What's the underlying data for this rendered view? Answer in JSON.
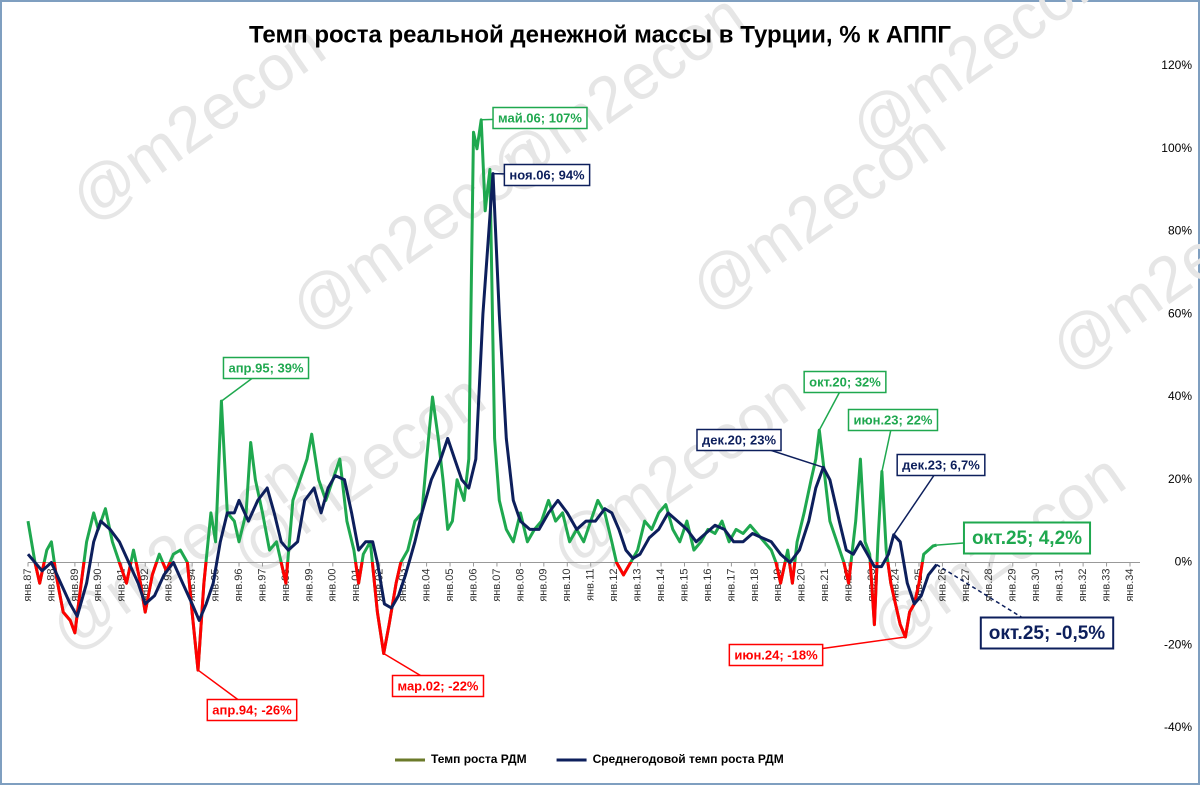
{
  "chart_data": {
    "type": "line",
    "title": "Темп роста реальной денежной массы в Турции, % к АППГ",
    "watermark": "@m2econ",
    "xlim": [
      1987,
      2035
    ],
    "ylim": [
      -40,
      120
    ],
    "xticks": [
      {
        "value": 1987,
        "label": "янв.87"
      },
      {
        "value": 1988,
        "label": "янв.88"
      },
      {
        "value": 1989,
        "label": "янв.89"
      },
      {
        "value": 1990,
        "label": "янв.90"
      },
      {
        "value": 1991,
        "label": "янв.91"
      },
      {
        "value": 1992,
        "label": "янв.92"
      },
      {
        "value": 1993,
        "label": "янв.93"
      },
      {
        "value": 1994,
        "label": "янв.94"
      },
      {
        "value": 1995,
        "label": "янв.95"
      },
      {
        "value": 1996,
        "label": "янв.96"
      },
      {
        "value": 1997,
        "label": "янв.97"
      },
      {
        "value": 1998,
        "label": "янв.98"
      },
      {
        "value": 1999,
        "label": "янв.99"
      },
      {
        "value": 2000,
        "label": "янв.00"
      },
      {
        "value": 2001,
        "label": "янв.01"
      },
      {
        "value": 2002,
        "label": "янв.02"
      },
      {
        "value": 2003,
        "label": "янв.03"
      },
      {
        "value": 2004,
        "label": "янв.04"
      },
      {
        "value": 2005,
        "label": "янв.05"
      },
      {
        "value": 2006,
        "label": "янв.06"
      },
      {
        "value": 2007,
        "label": "янв.07"
      },
      {
        "value": 2008,
        "label": "янв.08"
      },
      {
        "value": 2009,
        "label": "янв.09"
      },
      {
        "value": 2010,
        "label": "янв.10"
      },
      {
        "value": 2011,
        "label": "янв.11"
      },
      {
        "value": 2012,
        "label": "янв.12"
      },
      {
        "value": 2013,
        "label": "янв.13"
      },
      {
        "value": 2014,
        "label": "янв.14"
      },
      {
        "value": 2015,
        "label": "янв.15"
      },
      {
        "value": 2016,
        "label": "янв.16"
      },
      {
        "value": 2017,
        "label": "янв.17"
      },
      {
        "value": 2018,
        "label": "янв.18"
      },
      {
        "value": 2019,
        "label": "янв.19"
      },
      {
        "value": 2020,
        "label": "янв.20"
      },
      {
        "value": 2021,
        "label": "янв.21"
      },
      {
        "value": 2022,
        "label": "янв.22"
      },
      {
        "value": 2023,
        "label": "янв.23"
      },
      {
        "value": 2024,
        "label": "янв.24"
      },
      {
        "value": 2025,
        "label": "янв.25"
      },
      {
        "value": 2026,
        "label": "янв.26"
      },
      {
        "value": 2027,
        "label": "янв.27"
      },
      {
        "value": 2028,
        "label": "янв.28"
      },
      {
        "value": 2029,
        "label": "янв.29"
      },
      {
        "value": 2030,
        "label": "янв.30"
      },
      {
        "value": 2031,
        "label": "янв.31"
      },
      {
        "value": 2032,
        "label": "янв.32"
      },
      {
        "value": 2033,
        "label": "янв.33"
      },
      {
        "value": 2034,
        "label": "янв.34"
      }
    ],
    "yticks": [
      {
        "value": -40,
        "label": "-40%"
      },
      {
        "value": -20,
        "label": "-20%"
      },
      {
        "value": 0,
        "label": "0%"
      },
      {
        "value": 20,
        "label": "20%"
      },
      {
        "value": 40,
        "label": "40%"
      },
      {
        "value": 60,
        "label": "60%"
      },
      {
        "value": 80,
        "label": "80%"
      },
      {
        "value": 100,
        "label": "100%"
      },
      {
        "value": 120,
        "label": "120%"
      }
    ],
    "series": [
      {
        "name": "Темп роста РДМ",
        "color": "#1fa84f",
        "negative_color": "#ff0000",
        "legend_color": "#6b7a2a",
        "x": [
          1987.0,
          1987.3,
          1987.5,
          1987.8,
          1988.0,
          1988.2,
          1988.5,
          1988.8,
          1989.0,
          1989.2,
          1989.5,
          1989.8,
          1990.0,
          1990.3,
          1990.6,
          1990.9,
          1991.2,
          1991.5,
          1991.8,
          1992.0,
          1992.3,
          1992.6,
          1992.9,
          1993.2,
          1993.5,
          1993.8,
          1994.0,
          1994.25,
          1994.5,
          1994.8,
          1995.0,
          1995.25,
          1995.5,
          1995.8,
          1996.0,
          1996.3,
          1996.5,
          1996.7,
          1997.0,
          1997.3,
          1997.6,
          1997.8,
          1998.0,
          1998.3,
          1998.6,
          1998.9,
          1999.1,
          1999.4,
          1999.7,
          2000.0,
          2000.3,
          2000.6,
          2000.9,
          2001.1,
          2001.3,
          2001.6,
          2001.9,
          2002.17,
          2002.4,
          2002.7,
          2002.9,
          2003.2,
          2003.5,
          2003.8,
          2004.0,
          2004.25,
          2004.5,
          2004.7,
          2004.9,
          2005.1,
          2005.3,
          2005.6,
          2005.8,
          2006.0,
          2006.15,
          2006.33,
          2006.5,
          2006.7,
          2006.9,
          2007.1,
          2007.4,
          2007.7,
          2008.0,
          2008.3,
          2008.6,
          2008.9,
          2009.2,
          2009.5,
          2009.8,
          2010.1,
          2010.4,
          2010.7,
          2011.0,
          2011.3,
          2011.6,
          2011.9,
          2012.1,
          2012.4,
          2012.7,
          2013.0,
          2013.3,
          2013.6,
          2013.9,
          2014.2,
          2014.5,
          2014.8,
          2015.1,
          2015.4,
          2015.7,
          2016.0,
          2016.3,
          2016.6,
          2016.9,
          2017.2,
          2017.5,
          2017.8,
          2018.1,
          2018.4,
          2018.7,
          2018.9,
          2019.1,
          2019.4,
          2019.6,
          2019.8,
          2020.1,
          2020.4,
          2020.6,
          2020.75,
          2020.9,
          2021.2,
          2021.5,
          2021.8,
          2022.0,
          2022.3,
          2022.5,
          2022.7,
          2022.9,
          2023.1,
          2023.25,
          2023.42,
          2023.6,
          2023.8,
          2024.0,
          2024.2,
          2024.42,
          2024.6,
          2024.8,
          2025.0,
          2025.2,
          2025.4,
          2025.6,
          2025.75
        ],
        "values": [
          10,
          0,
          -5,
          3,
          5,
          -3,
          -12,
          -14,
          -17,
          -8,
          5,
          12,
          8,
          13,
          5,
          0,
          -5,
          3,
          -5,
          -12,
          -3,
          2,
          -2,
          2,
          3,
          0,
          -12,
          -26,
          -5,
          12,
          5,
          39,
          12,
          10,
          5,
          12,
          29,
          20,
          12,
          3,
          5,
          0,
          -5,
          15,
          20,
          25,
          31,
          20,
          15,
          20,
          25,
          10,
          3,
          -5,
          2,
          5,
          -12,
          -22,
          -15,
          -5,
          0,
          3,
          10,
          12,
          25,
          40,
          30,
          20,
          8,
          10,
          20,
          15,
          25,
          104,
          100,
          107,
          85,
          95,
          30,
          15,
          8,
          5,
          12,
          5,
          8,
          10,
          15,
          10,
          12,
          5,
          8,
          5,
          10,
          15,
          12,
          5,
          0,
          -3,
          0,
          3,
          10,
          8,
          12,
          14,
          8,
          5,
          10,
          3,
          5,
          8,
          7,
          10,
          5,
          8,
          7,
          9,
          7,
          5,
          3,
          0,
          -5,
          3,
          -5,
          5,
          12,
          20,
          25,
          32,
          25,
          10,
          5,
          0,
          -5,
          10,
          25,
          5,
          2,
          -15,
          5,
          22,
          3,
          -5,
          -10,
          -15,
          -18,
          -12,
          -10,
          -5,
          2,
          3,
          4,
          4.2
        ]
      },
      {
        "name": "Среднегодовой темп роста РДМ",
        "color": "#0d1f5c",
        "x": [
          1987.0,
          1987.6,
          1988.0,
          1988.4,
          1988.8,
          1989.1,
          1989.5,
          1989.8,
          1990.1,
          1990.5,
          1990.9,
          1991.3,
          1991.7,
          1992.0,
          1992.4,
          1992.8,
          1993.2,
          1993.6,
          1994.0,
          1994.3,
          1994.6,
          1994.9,
          1995.2,
          1995.5,
          1995.8,
          1996.0,
          1996.4,
          1996.8,
          1997.2,
          1997.5,
          1997.8,
          1998.1,
          1998.5,
          1998.8,
          1999.2,
          1999.5,
          1999.8,
          2000.1,
          2000.5,
          2000.8,
          2001.1,
          2001.4,
          2001.7,
          2001.9,
          2002.2,
          2002.5,
          2002.8,
          2003.1,
          2003.5,
          2003.8,
          2004.2,
          2004.6,
          2004.9,
          2005.2,
          2005.5,
          2005.8,
          2006.1,
          2006.4,
          2006.83,
          2007.1,
          2007.4,
          2007.7,
          2008.0,
          2008.4,
          2008.8,
          2009.2,
          2009.6,
          2010.0,
          2010.4,
          2010.8,
          2011.2,
          2011.6,
          2011.9,
          2012.2,
          2012.5,
          2012.8,
          2013.1,
          2013.5,
          2013.9,
          2014.3,
          2014.7,
          2015.1,
          2015.5,
          2015.9,
          2016.3,
          2016.7,
          2017.1,
          2017.5,
          2017.9,
          2018.3,
          2018.7,
          2019.1,
          2019.5,
          2019.9,
          2020.3,
          2020.6,
          2020.92,
          2021.2,
          2021.6,
          2021.9,
          2022.2,
          2022.5,
          2022.8,
          2023.1,
          2023.4,
          2023.7,
          2023.92,
          2024.2,
          2024.5,
          2024.8,
          2025.1,
          2025.4,
          2025.75
        ],
        "values": [
          2,
          -2,
          0,
          -5,
          -10,
          -13,
          -5,
          5,
          10,
          8,
          5,
          0,
          -5,
          -10,
          -8,
          -3,
          0,
          -5,
          -10,
          -14,
          -10,
          -5,
          5,
          12,
          12,
          15,
          10,
          15,
          18,
          12,
          5,
          3,
          5,
          15,
          18,
          12,
          18,
          21,
          20,
          12,
          3,
          5,
          5,
          0,
          -10,
          -11,
          -8,
          -3,
          5,
          12,
          20,
          25,
          30,
          25,
          20,
          18,
          25,
          60,
          94,
          60,
          30,
          15,
          10,
          8,
          8,
          12,
          15,
          12,
          8,
          10,
          10,
          13,
          12,
          8,
          3,
          1,
          2,
          6,
          8,
          12,
          10,
          8,
          5,
          7,
          9,
          8,
          5,
          5,
          7,
          6,
          5,
          2,
          0,
          3,
          10,
          18,
          23,
          20,
          10,
          3,
          2,
          5,
          2,
          -1,
          -1,
          2,
          6.7,
          5,
          -5,
          -10,
          -8,
          -3,
          -0.5
        ]
      }
    ],
    "annotations": [
      {
        "label": "апр.95; 39%",
        "x": 1995.25,
        "value": 39,
        "series": 0
      },
      {
        "label": "май.06; 107%",
        "x": 2006.33,
        "value": 107,
        "series": 0
      },
      {
        "label": "ноя.06; 94%",
        "x": 2006.83,
        "value": 94,
        "series": 1
      },
      {
        "label": "апр.94; -26%",
        "x": 1994.25,
        "value": -26,
        "series": 0
      },
      {
        "label": "мар.02; -22%",
        "x": 2002.17,
        "value": -22,
        "series": 0
      },
      {
        "label": "окт.20; 32%",
        "x": 2020.75,
        "value": 32,
        "series": 0
      },
      {
        "label": "дек.20; 23%",
        "x": 2020.92,
        "value": 23,
        "series": 1
      },
      {
        "label": "июн.23; 22%",
        "x": 2023.42,
        "value": 22,
        "series": 0
      },
      {
        "label": "дек.23; 6,7%",
        "x": 2023.92,
        "value": 6.7,
        "series": 1
      },
      {
        "label": "июн.24; -18%",
        "x": 2024.42,
        "value": -18,
        "series": 0
      },
      {
        "label": "окт.25; 4,2%",
        "x": 2025.75,
        "value": 4.2,
        "series": 0
      },
      {
        "label": "окт.25; -0,5%",
        "x": 2025.75,
        "value": -0.5,
        "series": 1
      }
    ]
  }
}
